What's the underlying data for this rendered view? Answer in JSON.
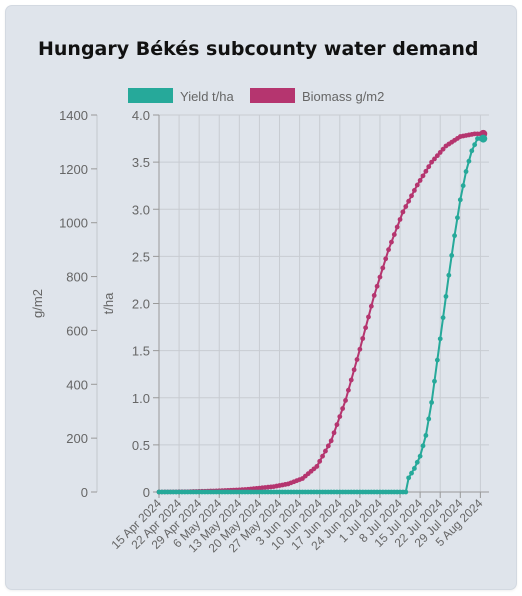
{
  "title": "Hungary Békés subcounty water demand",
  "colors": {
    "yield": "#26a99a",
    "biomass": "#b5356f",
    "grid": "#c8ccd2",
    "text": "#666666"
  },
  "chart_data": {
    "type": "line",
    "title": "Hungary Békés subcounty water demand",
    "legend_position": "top",
    "grid": true,
    "x_axis": {
      "type": "date",
      "range": [
        "2024-04-15",
        "2024-08-08"
      ],
      "tick_labels": [
        "15 Apr 2024",
        "22 Apr 2024",
        "29 Apr 2024",
        "6 May 2024",
        "13 May 2024",
        "20 May 2024",
        "27 May 2024",
        "3 Jun 2024",
        "10 Jun 2024",
        "17 Jun 2024",
        "24 Jun 2024",
        "1 Jul 2024",
        "8 Jul 2024",
        "15 Jul 2024",
        "22 Jul 2024",
        "29 Jul 2024",
        "5 Aug 2024"
      ]
    },
    "y_axes": [
      {
        "id": "biomass",
        "label": "g/m2",
        "range": [
          0,
          1400
        ],
        "ticks": [
          "0",
          "200",
          "400",
          "600",
          "800",
          "1000",
          "1200",
          "1400"
        ]
      },
      {
        "id": "yield",
        "label": "t/ha",
        "range": [
          0,
          4.0
        ],
        "ticks": [
          "0",
          "0.5",
          "1.0",
          "1.5",
          "2.0",
          "2.5",
          "3.0",
          "3.5",
          "4.0"
        ]
      }
    ],
    "series": [
      {
        "name": "Yield t/ha",
        "axis": "yield",
        "points": [
          [
            "2024-04-15",
            0
          ],
          [
            "2024-04-25",
            0
          ],
          [
            "2024-05-05",
            0
          ],
          [
            "2024-05-15",
            0
          ],
          [
            "2024-05-25",
            0
          ],
          [
            "2024-06-04",
            0
          ],
          [
            "2024-06-14",
            0
          ],
          [
            "2024-06-24",
            0
          ],
          [
            "2024-07-04",
            0
          ],
          [
            "2024-07-10",
            0
          ],
          [
            "2024-07-11",
            0.15
          ],
          [
            "2024-07-13",
            0.25
          ],
          [
            "2024-07-15",
            0.38
          ],
          [
            "2024-07-17",
            0.6
          ],
          [
            "2024-07-19",
            0.95
          ],
          [
            "2024-07-21",
            1.4
          ],
          [
            "2024-07-23",
            1.85
          ],
          [
            "2024-07-25",
            2.3
          ],
          [
            "2024-07-27",
            2.72
          ],
          [
            "2024-07-29",
            3.1
          ],
          [
            "2024-07-31",
            3.4
          ],
          [
            "2024-08-02",
            3.62
          ],
          [
            "2024-08-04",
            3.75
          ],
          [
            "2024-08-06",
            3.75
          ]
        ]
      },
      {
        "name": "Biomass g/m2",
        "axis": "biomass",
        "points": [
          [
            "2024-04-15",
            0
          ],
          [
            "2024-04-25",
            1
          ],
          [
            "2024-05-05",
            4
          ],
          [
            "2024-05-15",
            9
          ],
          [
            "2024-05-25",
            20
          ],
          [
            "2024-05-30",
            30
          ],
          [
            "2024-06-04",
            50
          ],
          [
            "2024-06-09",
            95
          ],
          [
            "2024-06-14",
            190
          ],
          [
            "2024-06-19",
            340
          ],
          [
            "2024-06-24",
            530
          ],
          [
            "2024-06-29",
            730
          ],
          [
            "2024-07-04",
            900
          ],
          [
            "2024-07-09",
            1040
          ],
          [
            "2024-07-14",
            1140
          ],
          [
            "2024-07-19",
            1225
          ],
          [
            "2024-07-24",
            1285
          ],
          [
            "2024-07-29",
            1320
          ],
          [
            "2024-08-03",
            1330
          ],
          [
            "2024-08-06",
            1330
          ]
        ]
      }
    ]
  }
}
